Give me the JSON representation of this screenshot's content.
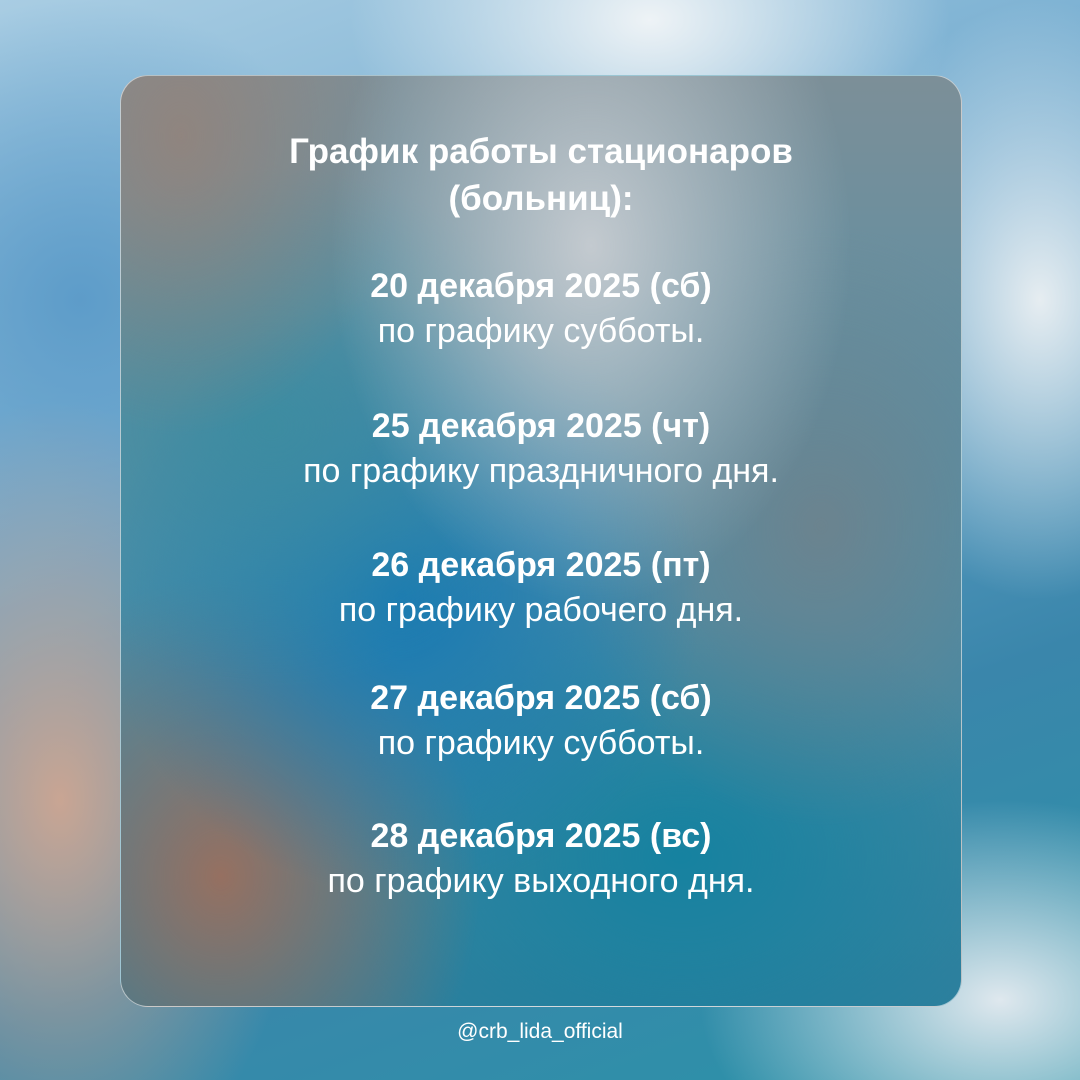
{
  "title": [
    "График работы стационаров",
    "(больниц):"
  ],
  "entries": [
    {
      "date": "20 декабря 2025 (сб)",
      "text": "по графику субботы."
    },
    {
      "date": "25 декабря 2025 (чт)",
      "text": "по графику праздничного дня."
    },
    {
      "date": "26 декабря 2025 (пт)",
      "text": "по графику рабочего дня."
    },
    {
      "date": "27 декабря 2025 (сб)",
      "text": "по графику субботы."
    },
    {
      "date": "28 декабря 2025 (вс)",
      "text": "по графику выходного дня."
    }
  ],
  "handle": "@crb_lida_official"
}
